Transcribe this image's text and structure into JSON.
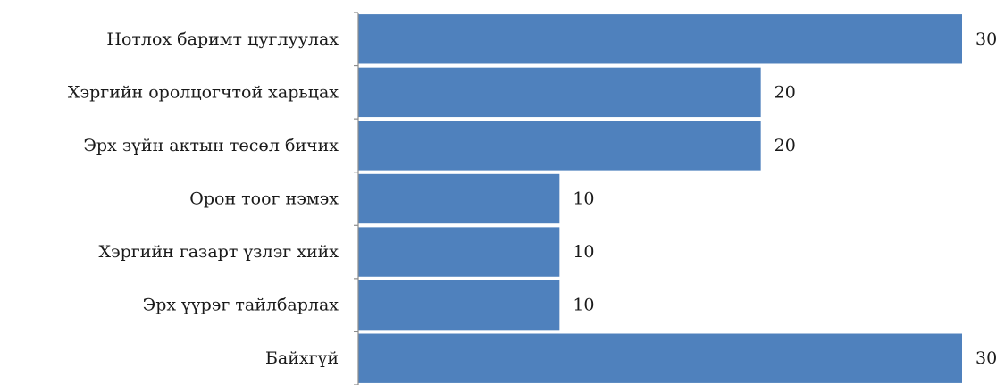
{
  "chart_data": {
    "type": "bar",
    "orientation": "horizontal",
    "categories": [
      "Нотлох баримт цуглуулах",
      "Хэргийн оролцогчтой харьцах",
      "Эрх зүйн актын төсөл бичих",
      "Орон тоог нэмэх",
      "Хэргийн газарт үзлэг хийх",
      "Эрх үүрэг тайлбарлах",
      "Байхгүй"
    ],
    "values": [
      30,
      20,
      20,
      10,
      10,
      10,
      30
    ],
    "value_labels": [
      "30",
      "20",
      "20",
      "10",
      "10",
      "10",
      "30"
    ],
    "xlim": [
      0,
      30
    ],
    "grid": false,
    "legend": "none",
    "colors": {
      "bar": "#4f81bd",
      "axis": "#8c8c8c",
      "text": "#1a1a1a"
    }
  }
}
